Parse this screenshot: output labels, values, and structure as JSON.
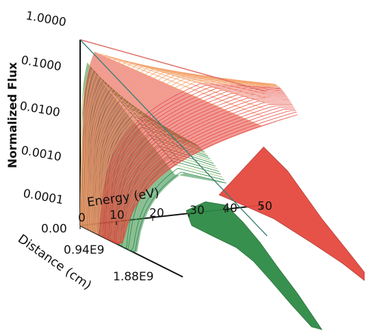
{
  "colors": {
    "red_series": "#e5493f",
    "red_dark": "#b3322b",
    "red_highlight": "#f4a36b",
    "green_series": "#2e8b45",
    "green_dark": "#1f6b33",
    "green_highlight": "#8fbf6a",
    "axis": "#111111",
    "upper_line": "#e0726a",
    "axis_diagonal": "#3a7f73"
  },
  "chart_data": {
    "type": "surface-3d",
    "title": "",
    "xlabel": "Energy (eV)",
    "ylabel": "Normalized Flux",
    "zlabel": "Distance (cm)",
    "x_ticks": [
      "0",
      "10",
      "20",
      "30",
      "40",
      "50"
    ],
    "y_ticks": [
      "0.0001",
      "0.0010",
      "0.0100",
      "0.1000",
      "1.0000"
    ],
    "z_ticks": [
      "0.00",
      "0.94E9",
      "1.88E9"
    ],
    "x_range": [
      0,
      50
    ],
    "y_range": [
      0.0001,
      1.0
    ],
    "y_scale": "log",
    "z_range": [
      0,
      2400000000.0
    ],
    "series": [
      {
        "name": "",
        "color": "red",
        "description_curves": "fan of ~40 spectra (distance slices), each rising to a peak then falling; curves extend to 50 eV and fold into a downward ribbon at far distance"
      },
      {
        "name": "",
        "color": "green",
        "description_curves": "fan of ~30 spectra (distance slices), truncated near 25–30 eV; extends as a downward ribbon at far distance"
      }
    ],
    "num_slices_red": 40,
    "num_slices_green": 30,
    "grid": false,
    "legend": "none"
  }
}
